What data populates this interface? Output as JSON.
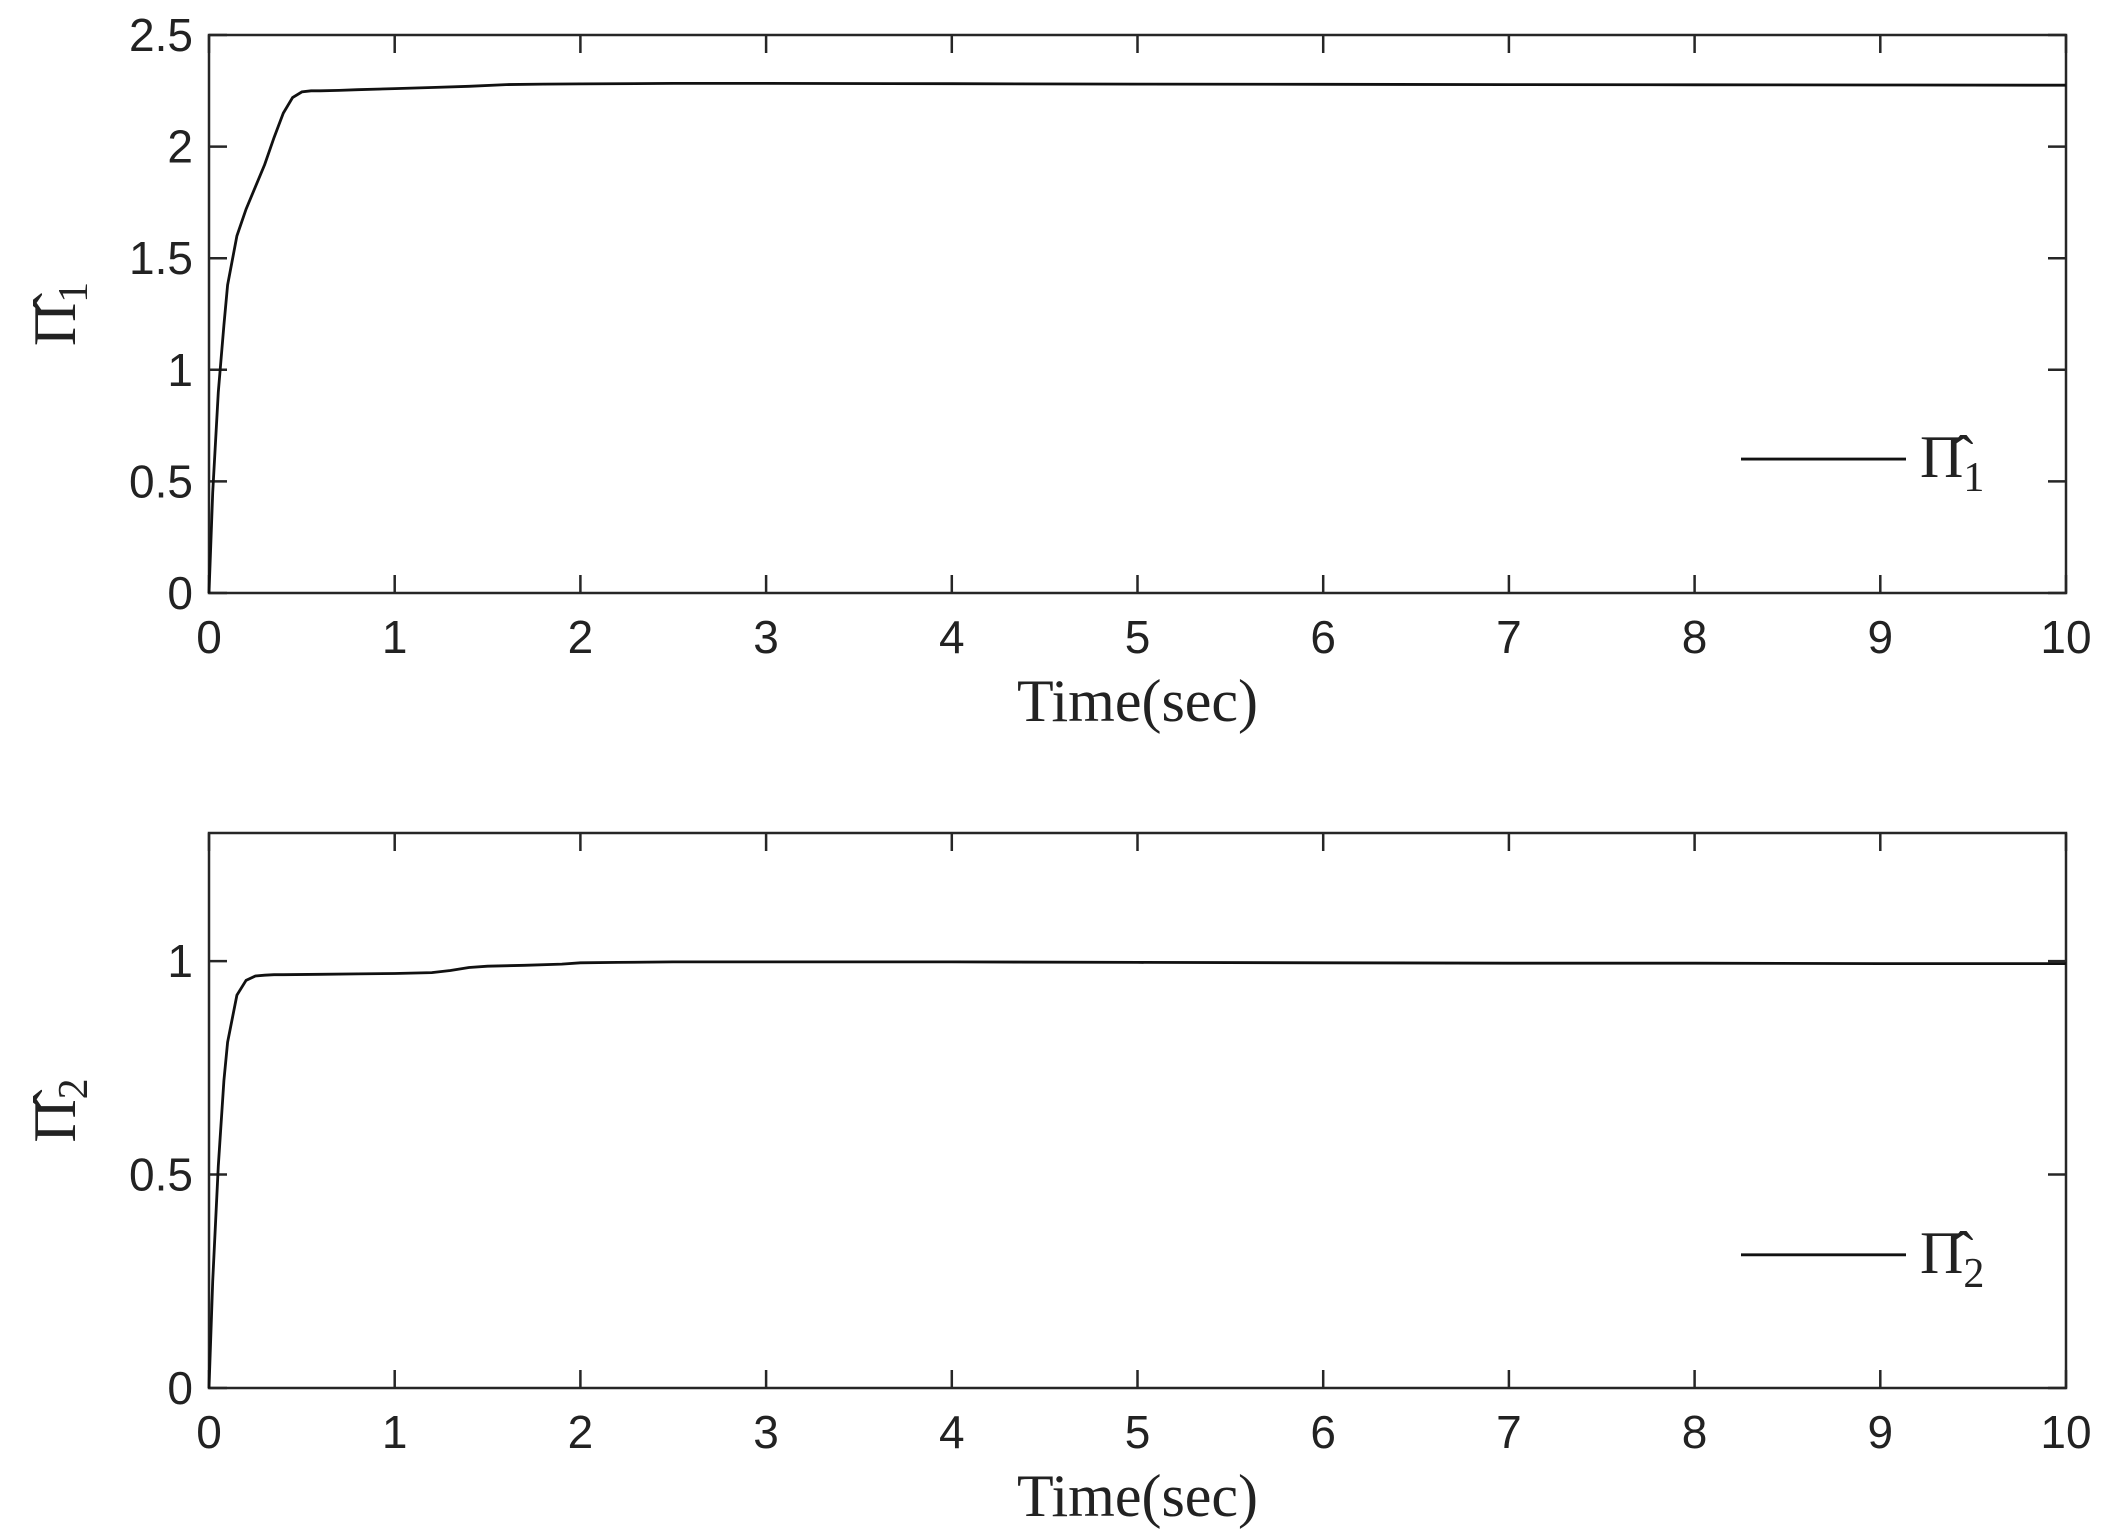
{
  "chart_data": [
    {
      "type": "line",
      "xlabel": "Time(sec)",
      "ylabel": "Π̂1",
      "ylabel_main": "Π̂",
      "ylabel_sub": "1",
      "xlim": [
        0,
        10
      ],
      "ylim": [
        0,
        2.5
      ],
      "xticks": [
        "0",
        "1",
        "2",
        "3",
        "4",
        "5",
        "6",
        "7",
        "8",
        "9",
        "10"
      ],
      "yticks": [
        "0",
        "0.5",
        "1",
        "1.5",
        "2",
        "2.5"
      ],
      "legend": {
        "position": "right",
        "label_main": "Π̂",
        "label_sub": "1"
      },
      "series": [
        {
          "name": "Π̂1",
          "x": [
            0,
            0.02,
            0.05,
            0.08,
            0.1,
            0.15,
            0.2,
            0.25,
            0.3,
            0.35,
            0.4,
            0.45,
            0.5,
            0.55,
            0.6,
            0.7,
            0.8,
            1.0,
            1.2,
            1.4,
            1.6,
            1.8,
            2.0,
            2.5,
            3.0,
            4.0,
            5.0,
            6.0,
            7.0,
            8.0,
            9.0,
            10.0
          ],
          "y": [
            0,
            0.45,
            0.9,
            1.2,
            1.38,
            1.6,
            1.72,
            1.82,
            1.92,
            2.04,
            2.15,
            2.22,
            2.245,
            2.25,
            2.25,
            2.252,
            2.255,
            2.26,
            2.265,
            2.27,
            2.278,
            2.28,
            2.281,
            2.283,
            2.283,
            2.282,
            2.28,
            2.279,
            2.278,
            2.277,
            2.276,
            2.275
          ],
          "color": "#111111"
        }
      ]
    },
    {
      "type": "line",
      "xlabel": "Time(sec)",
      "ylabel": "Π̂2",
      "ylabel_main": "Π̂",
      "ylabel_sub": "2",
      "xlim": [
        0,
        10
      ],
      "ylim": [
        0,
        1.3
      ],
      "xticks": [
        "0",
        "1",
        "2",
        "3",
        "4",
        "5",
        "6",
        "7",
        "8",
        "9",
        "10"
      ],
      "yticks": [
        "0",
        "0.5",
        "1"
      ],
      "legend": {
        "position": "right",
        "label_main": "Π̂",
        "label_sub": "2"
      },
      "series": [
        {
          "name": "Π̂2",
          "x": [
            0,
            0.02,
            0.05,
            0.08,
            0.1,
            0.15,
            0.2,
            0.25,
            0.3,
            0.35,
            0.4,
            0.6,
            0.8,
            1.0,
            1.2,
            1.3,
            1.4,
            1.5,
            1.7,
            1.9,
            2.0,
            2.2,
            2.5,
            3.0,
            4.0,
            5.0,
            6.0,
            7.0,
            8.0,
            9.0,
            10.0
          ],
          "y": [
            0,
            0.25,
            0.52,
            0.72,
            0.81,
            0.92,
            0.955,
            0.965,
            0.967,
            0.968,
            0.968,
            0.969,
            0.97,
            0.971,
            0.973,
            0.978,
            0.985,
            0.988,
            0.99,
            0.993,
            0.996,
            0.997,
            0.998,
            0.998,
            0.998,
            0.997,
            0.996,
            0.995,
            0.995,
            0.994,
            0.994
          ],
          "color": "#111111"
        }
      ]
    }
  ]
}
